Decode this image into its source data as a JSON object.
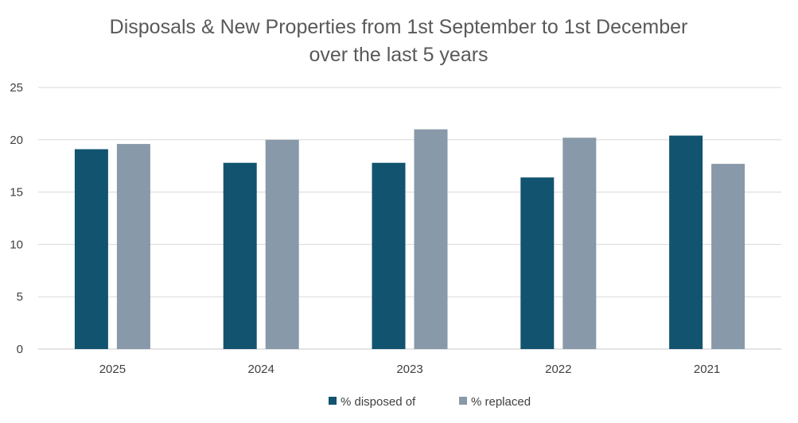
{
  "chart_data": {
    "type": "bar",
    "title": [
      "Disposals & New Properties from 1st September to 1st December",
      "over the last 5 years"
    ],
    "categories": [
      "2025",
      "2024",
      "2023",
      "2022",
      "2021"
    ],
    "series": [
      {
        "name": "% disposed of",
        "color": "#12546f",
        "values": [
          19.1,
          17.8,
          17.8,
          16.4,
          20.4
        ]
      },
      {
        "name": "% replaced",
        "color": "#8899a9",
        "values": [
          19.6,
          20.0,
          21.0,
          20.2,
          17.7
        ]
      }
    ],
    "ylim": [
      0,
      25
    ],
    "yticks": [
      0,
      5,
      10,
      15,
      20,
      25
    ],
    "grid": true,
    "legend_position": "bottom",
    "xlabel": "",
    "ylabel": ""
  }
}
